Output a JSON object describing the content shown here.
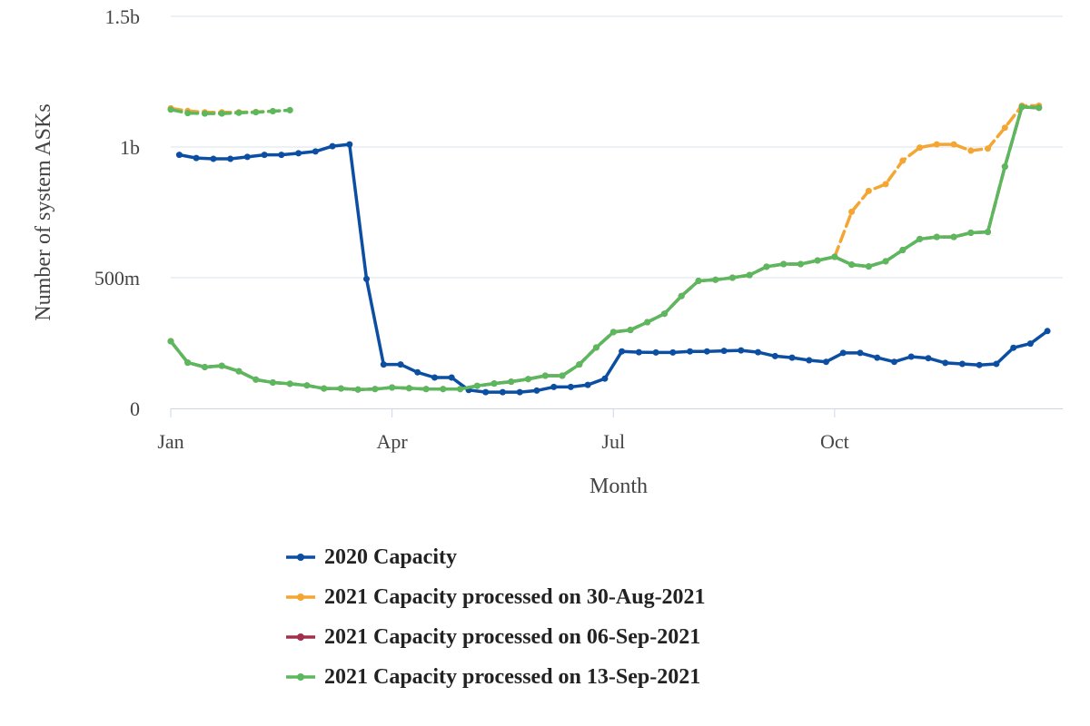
{
  "chart_data": {
    "type": "line",
    "title": "",
    "xlabel": "Month",
    "ylabel": "Number of system ASKs",
    "x_unit": "week of year",
    "x_ticks": [
      {
        "label": "Jan",
        "week": 0
      },
      {
        "label": "Apr",
        "week": 13
      },
      {
        "label": "Jul",
        "week": 26
      },
      {
        "label": "Oct",
        "week": 39
      }
    ],
    "y_ticks": [
      {
        "label": "0",
        "value": 0
      },
      {
        "label": "500m",
        "value": 500000000
      },
      {
        "label": "1b",
        "value": 1000000000
      },
      {
        "label": "1.5b",
        "value": 1500000000
      }
    ],
    "xlim": [
      0,
      52.4
    ],
    "ylim": [
      0,
      1500000000
    ],
    "grid": true,
    "legend_position": "bottom",
    "series": [
      {
        "name": "2020 Capacity",
        "color": "#0b4ea2",
        "dashed": false,
        "segments": [
          [
            [
              0.5,
              970000000
            ],
            [
              1.5,
              958000000
            ],
            [
              2.5,
              955000000
            ],
            [
              3.5,
              955000000
            ],
            [
              4.5,
              962000000
            ],
            [
              5.5,
              970000000
            ],
            [
              6.5,
              970000000
            ],
            [
              7.5,
              976000000
            ],
            [
              8.5,
              983000000
            ],
            [
              9.5,
              1003000000
            ],
            [
              10.5,
              1010000000
            ],
            [
              11.5,
              495000000
            ],
            [
              12.5,
              168000000
            ],
            [
              13.5,
              168000000
            ],
            [
              14.5,
              138000000
            ],
            [
              15.5,
              118000000
            ],
            [
              16.5,
              118000000
            ],
            [
              17.5,
              70000000
            ],
            [
              18.5,
              62000000
            ],
            [
              19.5,
              62000000
            ],
            [
              20.5,
              62000000
            ],
            [
              21.5,
              68000000
            ],
            [
              22.5,
              82000000
            ],
            [
              23.5,
              82000000
            ],
            [
              24.5,
              90000000
            ],
            [
              25.5,
              114000000
            ],
            [
              26.5,
              218000000
            ],
            [
              27.5,
              215000000
            ],
            [
              28.5,
              214000000
            ],
            [
              29.5,
              214000000
            ],
            [
              30.5,
              218000000
            ],
            [
              31.5,
              218000000
            ],
            [
              32.5,
              220000000
            ],
            [
              33.5,
              222000000
            ],
            [
              34.5,
              215000000
            ],
            [
              35.5,
              200000000
            ],
            [
              36.5,
              194000000
            ],
            [
              37.5,
              184000000
            ],
            [
              38.5,
              178000000
            ],
            [
              39.5,
              212000000
            ],
            [
              40.5,
              212000000
            ],
            [
              41.5,
              194000000
            ],
            [
              42.5,
              178000000
            ],
            [
              43.5,
              198000000
            ],
            [
              44.5,
              192000000
            ],
            [
              45.5,
              174000000
            ],
            [
              46.5,
              170000000
            ],
            [
              47.5,
              166000000
            ],
            [
              48.5,
              170000000
            ],
            [
              49.5,
              232000000
            ],
            [
              50.5,
              248000000
            ],
            [
              51.5,
              296000000
            ]
          ]
        ]
      },
      {
        "name": "2021 Capacity processed on 30-Aug-2021",
        "color": "#f4a532",
        "dashed": true,
        "segments": [
          [
            [
              0,
              1148000000
            ],
            [
              1,
              1138000000
            ],
            [
              2,
              1133000000
            ],
            [
              3,
              1133000000
            ],
            [
              4,
              1133000000
            ],
            [
              5,
              1134000000
            ],
            [
              6,
              1137000000
            ],
            [
              7,
              1141000000
            ]
          ],
          [
            [
              39,
              580000000
            ],
            [
              40,
              752000000
            ],
            [
              41,
              832000000
            ],
            [
              42,
              858000000
            ],
            [
              43,
              948000000
            ],
            [
              44,
              998000000
            ],
            [
              45,
              1010000000
            ],
            [
              46,
              1010000000
            ],
            [
              47,
              986000000
            ],
            [
              48,
              994000000
            ],
            [
              49,
              1074000000
            ],
            [
              50,
              1158000000
            ],
            [
              51,
              1158000000
            ]
          ]
        ]
      },
      {
        "name": "2021 Capacity processed on 06-Sep-2021",
        "color": "#a3304a",
        "dashed": true,
        "segments": [
          [
            [
              0,
              257000000
            ],
            [
              1,
              175000000
            ],
            [
              2,
              158000000
            ],
            [
              3,
              163000000
            ],
            [
              4,
              142000000
            ],
            [
              5,
              110000000
            ],
            [
              6,
              99000000
            ],
            [
              7,
              94000000
            ],
            [
              8,
              88000000
            ],
            [
              9,
              76000000
            ],
            [
              10,
              76000000
            ],
            [
              11,
              72000000
            ],
            [
              12,
              74000000
            ],
            [
              13,
              80000000
            ],
            [
              14,
              77000000
            ],
            [
              15,
              74000000
            ],
            [
              16,
              74000000
            ],
            [
              17,
              74000000
            ],
            [
              18,
              86000000
            ],
            [
              19,
              95000000
            ],
            [
              20,
              102000000
            ],
            [
              21,
              112000000
            ],
            [
              22,
              125000000
            ],
            [
              23,
              125000000
            ],
            [
              24,
              168000000
            ],
            [
              25,
              233000000
            ],
            [
              26,
              292000000
            ],
            [
              27,
              300000000
            ],
            [
              28,
              330000000
            ],
            [
              29,
              362000000
            ],
            [
              30,
              430000000
            ],
            [
              31,
              488000000
            ],
            [
              32,
              492000000
            ],
            [
              33,
              500000000
            ],
            [
              34,
              510000000
            ],
            [
              35,
              542000000
            ],
            [
              36,
              552000000
            ],
            [
              37,
              552000000
            ],
            [
              38,
              566000000
            ],
            [
              39,
              580000000
            ],
            [
              40,
              550000000
            ],
            [
              41,
              543000000
            ],
            [
              42,
              563000000
            ],
            [
              43,
              606000000
            ],
            [
              44,
              648000000
            ],
            [
              45,
              656000000
            ],
            [
              46,
              656000000
            ],
            [
              47,
              672000000
            ],
            [
              48,
              675000000
            ],
            [
              49,
              925000000
            ],
            [
              50,
              1153000000
            ],
            [
              51,
              1150000000
            ]
          ]
        ]
      },
      {
        "name": "2021 Capacity processed on 13-Sep-2021",
        "color": "#5cb85c",
        "dashed": true,
        "segments": [
          [
            [
              0,
              1143000000
            ],
            [
              1,
              1130000000
            ],
            [
              2,
              1128000000
            ],
            [
              3,
              1128000000
            ],
            [
              4,
              1131000000
            ],
            [
              5,
              1133000000
            ],
            [
              6,
              1137000000
            ],
            [
              7,
              1141000000
            ]
          ],
          [
            [
              0,
              257000000
            ],
            [
              1,
              175000000
            ],
            [
              2,
              158000000
            ],
            [
              3,
              163000000
            ],
            [
              4,
              142000000
            ],
            [
              5,
              110000000
            ],
            [
              6,
              99000000
            ],
            [
              7,
              94000000
            ],
            [
              8,
              88000000
            ],
            [
              9,
              76000000
            ],
            [
              10,
              76000000
            ],
            [
              11,
              72000000
            ],
            [
              12,
              74000000
            ],
            [
              13,
              80000000
            ],
            [
              14,
              77000000
            ],
            [
              15,
              74000000
            ],
            [
              16,
              74000000
            ],
            [
              17,
              74000000
            ],
            [
              18,
              86000000
            ],
            [
              19,
              95000000
            ],
            [
              20,
              102000000
            ],
            [
              21,
              112000000
            ],
            [
              22,
              125000000
            ],
            [
              23,
              125000000
            ],
            [
              24,
              168000000
            ],
            [
              25,
              233000000
            ],
            [
              26,
              292000000
            ],
            [
              27,
              300000000
            ],
            [
              28,
              330000000
            ],
            [
              29,
              362000000
            ],
            [
              30,
              430000000
            ],
            [
              31,
              488000000
            ],
            [
              32,
              492000000
            ],
            [
              33,
              500000000
            ],
            [
              34,
              510000000
            ],
            [
              35,
              542000000
            ],
            [
              36,
              552000000
            ],
            [
              37,
              552000000
            ],
            [
              38,
              566000000
            ],
            [
              39,
              580000000
            ],
            [
              40,
              550000000
            ],
            [
              41,
              543000000
            ],
            [
              42,
              563000000
            ],
            [
              43,
              606000000
            ],
            [
              44,
              648000000
            ],
            [
              45,
              656000000
            ],
            [
              46,
              656000000
            ],
            [
              47,
              672000000
            ],
            [
              48,
              675000000
            ],
            [
              49,
              925000000
            ],
            [
              50,
              1153000000
            ],
            [
              51,
              1150000000
            ]
          ]
        ],
        "solid_segments": [
          1
        ]
      }
    ]
  }
}
